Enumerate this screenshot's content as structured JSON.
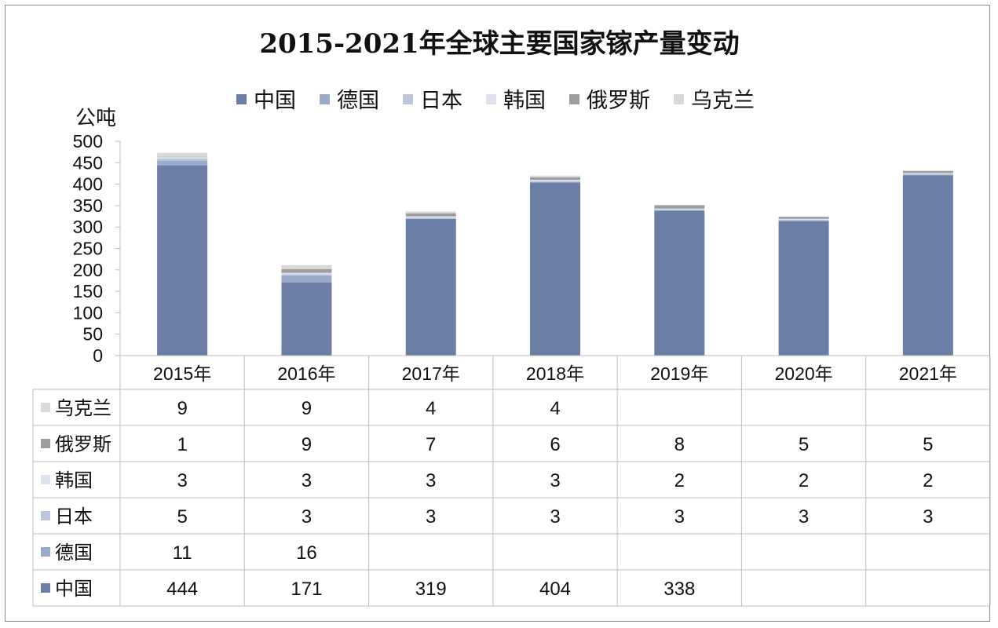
{
  "chart_data": {
    "type": "bar",
    "stacked": true,
    "title": "2015-2021年全球主要国家镓产量变动",
    "ylabel": "公吨",
    "xlabel": "",
    "ylim": [
      0,
      500
    ],
    "yticks": [
      0,
      50,
      100,
      150,
      200,
      250,
      300,
      350,
      400,
      450,
      500
    ],
    "categories": [
      "2015年",
      "2016年",
      "2017年",
      "2018年",
      "2019年",
      "2020年",
      "2021年"
    ],
    "legend_position": "top",
    "grid": false,
    "series": [
      {
        "name": "中国",
        "color": "#6b7fa6",
        "values": [
          444,
          171,
          319,
          404,
          338,
          314,
          421
        ]
      },
      {
        "name": "德国",
        "color": "#9aabca",
        "values": [
          11,
          16,
          null,
          null,
          null,
          null,
          null
        ]
      },
      {
        "name": "日本",
        "color": "#bac6dc",
        "values": [
          5,
          3,
          3,
          3,
          3,
          3,
          3
        ]
      },
      {
        "name": "韩国",
        "color": "#dde3ee",
        "values": [
          3,
          3,
          3,
          3,
          2,
          2,
          2
        ]
      },
      {
        "name": "俄罗斯",
        "color": "#9d9d9d",
        "values": [
          1,
          9,
          7,
          6,
          8,
          5,
          5
        ]
      },
      {
        "name": "乌克兰",
        "color": "#d9d9d9",
        "values": [
          9,
          9,
          4,
          4,
          null,
          null,
          null
        ]
      }
    ],
    "table": {
      "row_order": [
        "乌克兰",
        "俄罗斯",
        "韩国",
        "日本",
        "德国",
        "中国"
      ],
      "rows": [
        [
          "9",
          "9",
          "4",
          "4",
          "",
          "",
          ""
        ],
        [
          "1",
          "9",
          "7",
          "6",
          "8",
          "5",
          "5"
        ],
        [
          "3",
          "3",
          "3",
          "3",
          "2",
          "2",
          "2"
        ],
        [
          "5",
          "3",
          "3",
          "3",
          "3",
          "3",
          "3"
        ],
        [
          "11",
          "16",
          "",
          "",
          "",
          "",
          ""
        ],
        [
          "444",
          "171",
          "319",
          "404",
          "338",
          "",
          ""
        ]
      ]
    }
  }
}
